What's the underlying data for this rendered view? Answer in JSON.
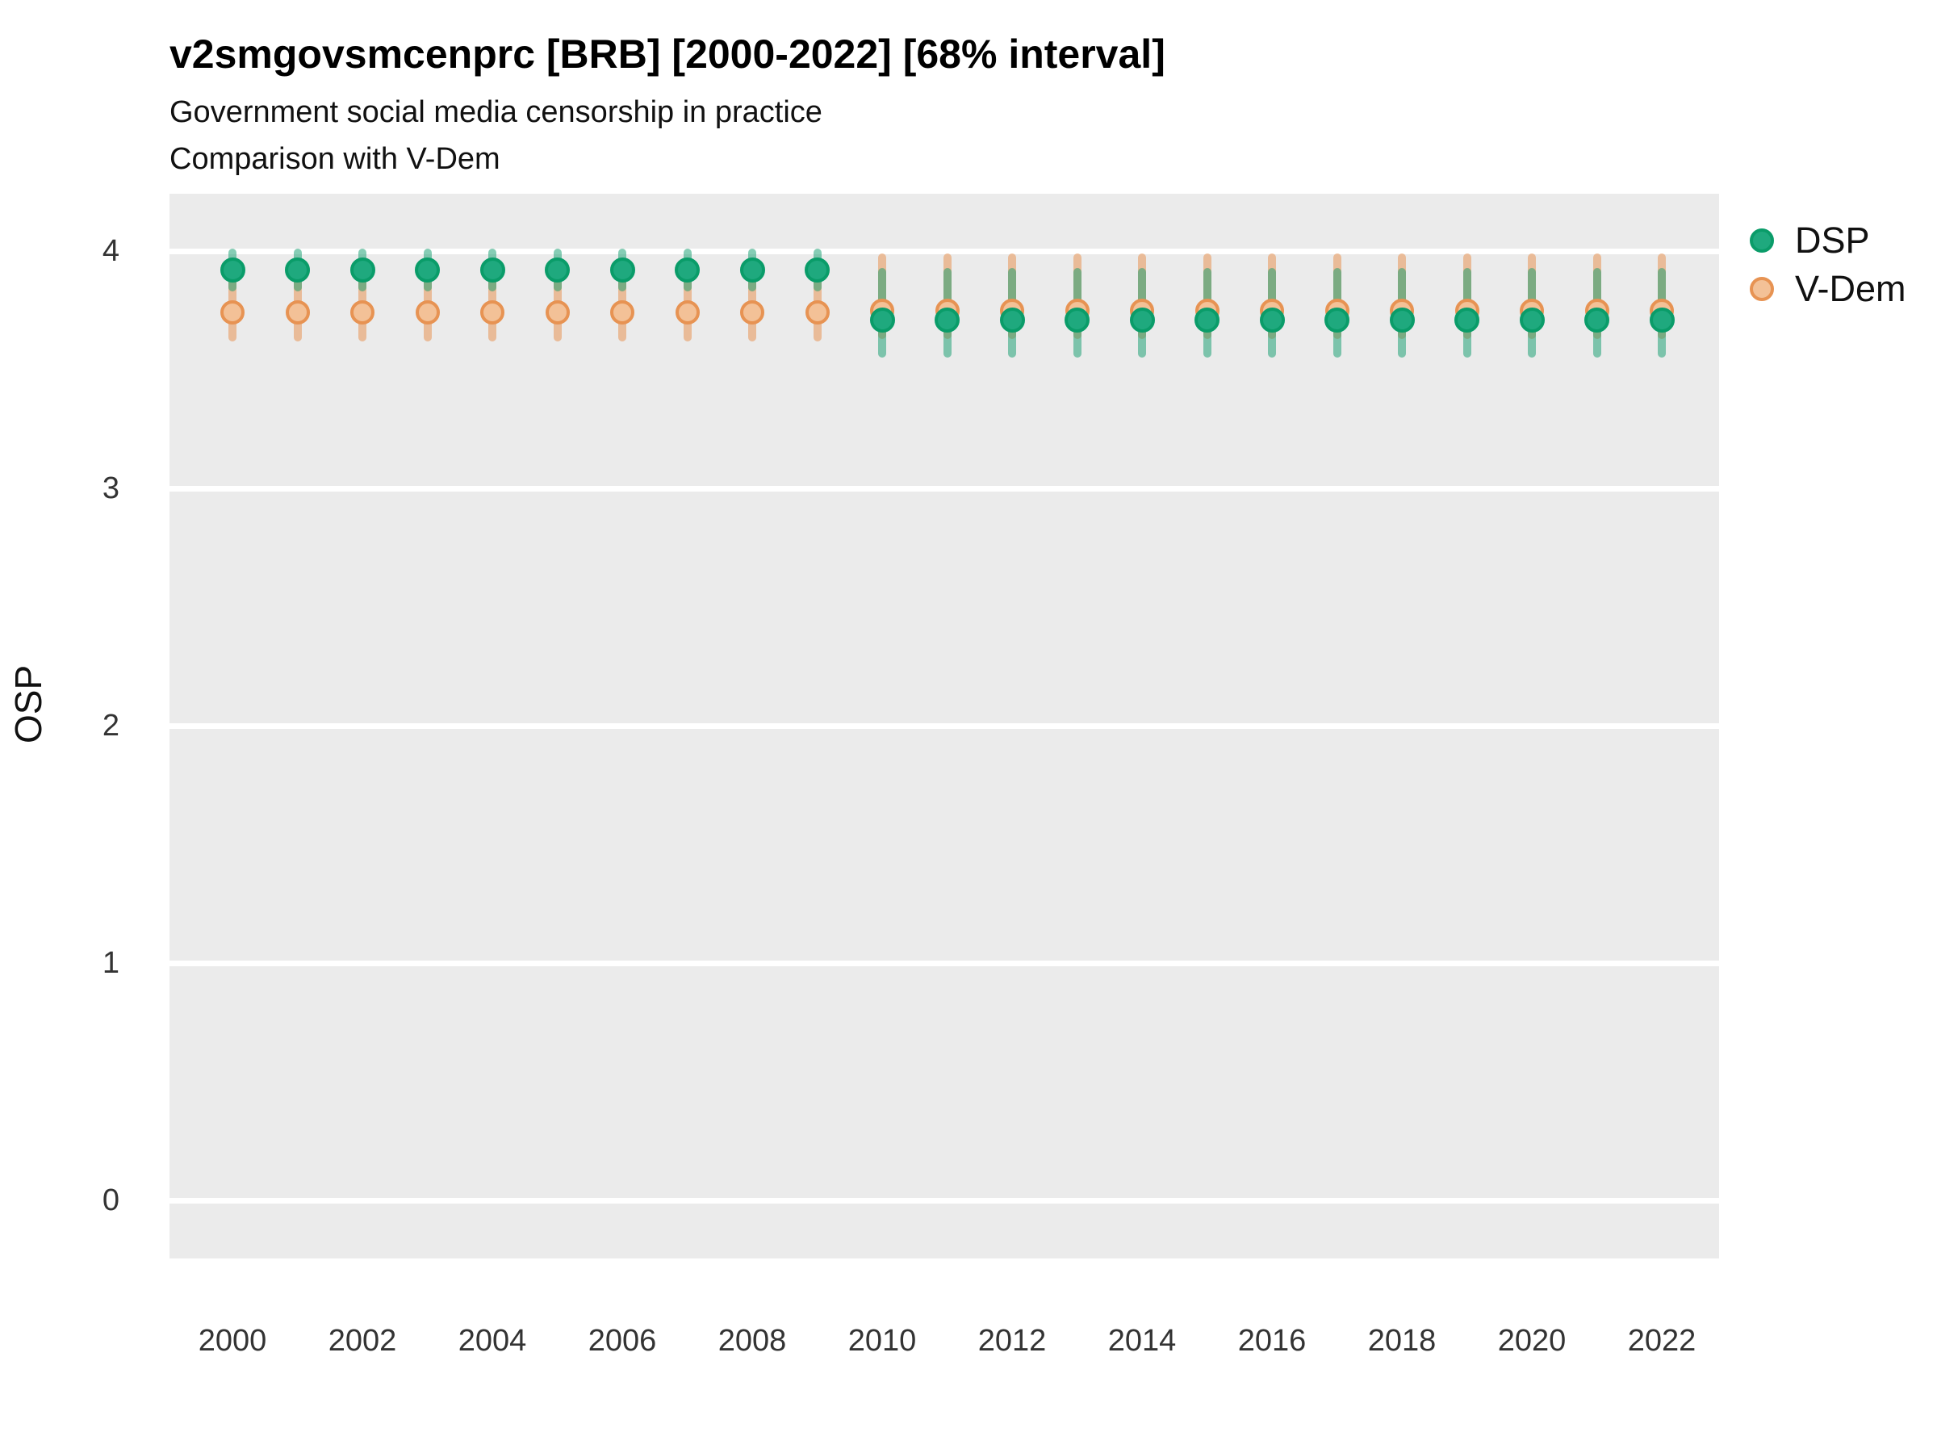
{
  "header": {
    "title": "v2smgovsmcenprc [BRB] [2000-2022] [68% interval]",
    "subtitle": "Government social media censorship in practice",
    "subtitle2": "Comparison with V-Dem"
  },
  "axes": {
    "ylabel": "OSP"
  },
  "legend": {
    "items": [
      {
        "label": "DSP"
      },
      {
        "label": "V-Dem"
      }
    ]
  },
  "colors": {
    "panel_background": "#ebebeb",
    "gridline": "#ffffff",
    "dsp_point_fill": "#1fa97e",
    "dsp_point_stroke": "#0a9c69",
    "dsp_line": "rgba(13,156,108,0.5)",
    "vdem_point_fill": "#f3c197",
    "vdem_point_stroke": "#e79353",
    "vdem_line": "rgba(231,147,83,0.55)"
  },
  "chart_data": {
    "type": "pointrange",
    "title": "v2smgovsmcenprc [BRB] [2000-2022] [68% interval]",
    "subtitle": "Government social media censorship in practice",
    "comparison_note": "Comparison with V-Dem",
    "interval": "68%",
    "xlabel": "",
    "ylabel": "OSP",
    "ylim": [
      -0.25,
      4.24
    ],
    "yticks": [
      0,
      1,
      2,
      3,
      4
    ],
    "xticks": [
      2000,
      2002,
      2004,
      2006,
      2008,
      2010,
      2012,
      2014,
      2016,
      2018,
      2020,
      2022
    ],
    "grid": "horizontal major gridlines only, white on grey panel",
    "legend_position": "right-top",
    "series": [
      {
        "name": "V-Dem",
        "points": [
          {
            "year": 2000,
            "est": 3.74,
            "lo": 3.62,
            "hi": 3.9
          },
          {
            "year": 2001,
            "est": 3.74,
            "lo": 3.62,
            "hi": 3.9
          },
          {
            "year": 2002,
            "est": 3.74,
            "lo": 3.62,
            "hi": 3.9
          },
          {
            "year": 2003,
            "est": 3.74,
            "lo": 3.62,
            "hi": 3.9
          },
          {
            "year": 2004,
            "est": 3.74,
            "lo": 3.62,
            "hi": 3.9
          },
          {
            "year": 2005,
            "est": 3.74,
            "lo": 3.62,
            "hi": 3.9
          },
          {
            "year": 2006,
            "est": 3.74,
            "lo": 3.62,
            "hi": 3.9
          },
          {
            "year": 2007,
            "est": 3.74,
            "lo": 3.62,
            "hi": 3.9
          },
          {
            "year": 2008,
            "est": 3.74,
            "lo": 3.62,
            "hi": 3.9
          },
          {
            "year": 2009,
            "est": 3.74,
            "lo": 3.62,
            "hi": 3.9
          },
          {
            "year": 2010,
            "est": 3.75,
            "lo": 3.63,
            "hi": 3.99
          },
          {
            "year": 2011,
            "est": 3.75,
            "lo": 3.63,
            "hi": 3.99
          },
          {
            "year": 2012,
            "est": 3.75,
            "lo": 3.63,
            "hi": 3.99
          },
          {
            "year": 2013,
            "est": 3.75,
            "lo": 3.63,
            "hi": 3.99
          },
          {
            "year": 2014,
            "est": 3.75,
            "lo": 3.63,
            "hi": 3.99
          },
          {
            "year": 2015,
            "est": 3.75,
            "lo": 3.63,
            "hi": 3.99
          },
          {
            "year": 2016,
            "est": 3.75,
            "lo": 3.63,
            "hi": 3.99
          },
          {
            "year": 2017,
            "est": 3.75,
            "lo": 3.63,
            "hi": 3.99
          },
          {
            "year": 2018,
            "est": 3.75,
            "lo": 3.63,
            "hi": 3.99
          },
          {
            "year": 2019,
            "est": 3.75,
            "lo": 3.63,
            "hi": 3.99
          },
          {
            "year": 2020,
            "est": 3.75,
            "lo": 3.63,
            "hi": 3.99
          },
          {
            "year": 2021,
            "est": 3.75,
            "lo": 3.63,
            "hi": 3.99
          },
          {
            "year": 2022,
            "est": 3.75,
            "lo": 3.63,
            "hi": 3.99
          }
        ]
      },
      {
        "name": "DSP",
        "points": [
          {
            "year": 2000,
            "est": 3.92,
            "lo": 3.83,
            "hi": 4.01
          },
          {
            "year": 2001,
            "est": 3.92,
            "lo": 3.83,
            "hi": 4.01
          },
          {
            "year": 2002,
            "est": 3.92,
            "lo": 3.83,
            "hi": 4.01
          },
          {
            "year": 2003,
            "est": 3.92,
            "lo": 3.83,
            "hi": 4.01
          },
          {
            "year": 2004,
            "est": 3.92,
            "lo": 3.83,
            "hi": 4.01
          },
          {
            "year": 2005,
            "est": 3.92,
            "lo": 3.83,
            "hi": 4.01
          },
          {
            "year": 2006,
            "est": 3.92,
            "lo": 3.83,
            "hi": 4.01
          },
          {
            "year": 2007,
            "est": 3.92,
            "lo": 3.83,
            "hi": 4.01
          },
          {
            "year": 2008,
            "est": 3.92,
            "lo": 3.83,
            "hi": 4.01
          },
          {
            "year": 2009,
            "est": 3.92,
            "lo": 3.83,
            "hi": 4.01
          },
          {
            "year": 2010,
            "est": 3.71,
            "lo": 3.55,
            "hi": 3.93
          },
          {
            "year": 2011,
            "est": 3.71,
            "lo": 3.55,
            "hi": 3.93
          },
          {
            "year": 2012,
            "est": 3.71,
            "lo": 3.55,
            "hi": 3.93
          },
          {
            "year": 2013,
            "est": 3.71,
            "lo": 3.55,
            "hi": 3.93
          },
          {
            "year": 2014,
            "est": 3.71,
            "lo": 3.55,
            "hi": 3.93
          },
          {
            "year": 2015,
            "est": 3.71,
            "lo": 3.55,
            "hi": 3.93
          },
          {
            "year": 2016,
            "est": 3.71,
            "lo": 3.55,
            "hi": 3.93
          },
          {
            "year": 2017,
            "est": 3.71,
            "lo": 3.55,
            "hi": 3.93
          },
          {
            "year": 2018,
            "est": 3.71,
            "lo": 3.55,
            "hi": 3.93
          },
          {
            "year": 2019,
            "est": 3.71,
            "lo": 3.55,
            "hi": 3.93
          },
          {
            "year": 2020,
            "est": 3.71,
            "lo": 3.55,
            "hi": 3.93
          },
          {
            "year": 2021,
            "est": 3.71,
            "lo": 3.55,
            "hi": 3.93
          },
          {
            "year": 2022,
            "est": 3.71,
            "lo": 3.55,
            "hi": 3.93
          }
        ]
      }
    ]
  }
}
